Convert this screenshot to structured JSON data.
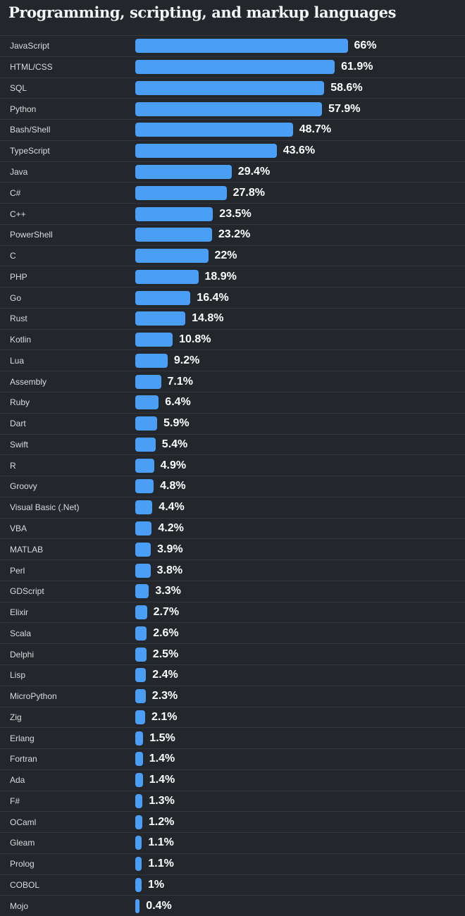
{
  "chart_data": {
    "type": "bar",
    "orientation": "horizontal",
    "title": "Programming, scripting, and markup languages",
    "categories": [
      "JavaScript",
      "HTML/CSS",
      "SQL",
      "Python",
      "Bash/Shell",
      "TypeScript",
      "Java",
      "C#",
      "C++",
      "PowerShell",
      "C",
      "PHP",
      "Go",
      "Rust",
      "Kotlin",
      "Lua",
      "Assembly",
      "Ruby",
      "Dart",
      "Swift",
      "R",
      "Groovy",
      "Visual Basic (.Net)",
      "VBA",
      "MATLAB",
      "Perl",
      "GDScript",
      "Elixir",
      "Scala",
      "Delphi",
      "Lisp",
      "MicroPython",
      "Zig",
      "Erlang",
      "Fortran",
      "Ada",
      "F#",
      "OCaml",
      "Gleam",
      "Prolog",
      "COBOL",
      "Mojo"
    ],
    "values": [
      66,
      61.9,
      58.6,
      57.9,
      48.7,
      43.6,
      29.4,
      27.8,
      23.5,
      23.2,
      22,
      18.9,
      16.4,
      14.8,
      10.8,
      9.2,
      7.1,
      6.4,
      5.9,
      5.4,
      4.9,
      4.8,
      4.4,
      4.2,
      3.9,
      3.8,
      3.3,
      2.7,
      2.6,
      2.5,
      2.4,
      2.3,
      2.1,
      1.5,
      1.4,
      1.4,
      1.3,
      1.2,
      1.1,
      1.1,
      1,
      0.4
    ],
    "value_labels": [
      "66%",
      "61.9%",
      "58.6%",
      "57.9%",
      "48.7%",
      "43.6%",
      "29.4%",
      "27.8%",
      "23.5%",
      "23.2%",
      "22%",
      "18.9%",
      "16.4%",
      "14.8%",
      "10.8%",
      "9.2%",
      "7.1%",
      "6.4%",
      "5.9%",
      "5.4%",
      "4.9%",
      "4.8%",
      "4.4%",
      "4.2%",
      "3.9%",
      "3.8%",
      "3.3%",
      "2.7%",
      "2.6%",
      "2.5%",
      "2.4%",
      "2.3%",
      "2.1%",
      "1.5%",
      "1.4%",
      "1.4%",
      "1.3%",
      "1.2%",
      "1.1%",
      "1.1%",
      "1%",
      "0.4%"
    ],
    "xlim": [
      0,
      66
    ],
    "grid": false,
    "legend": false,
    "bar_color": "#4a9ef5",
    "background_color": "#23272b",
    "label_color": "#d9dcdf",
    "value_color": "#ffffff",
    "separator_color": "rgba(255,255,255,0.07)"
  }
}
